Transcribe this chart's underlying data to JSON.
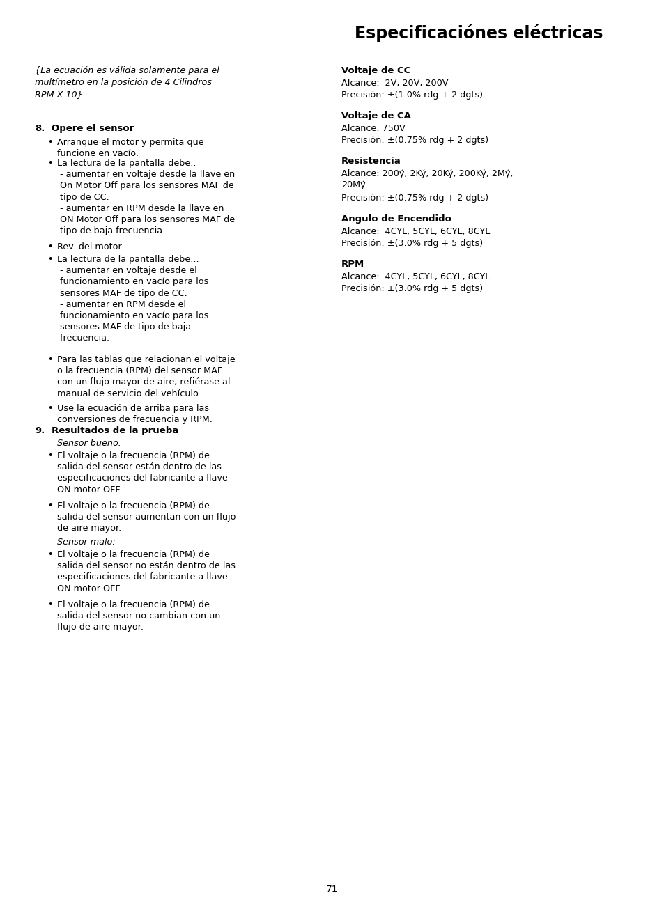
{
  "title": "Especificaciónes eléctricas",
  "bg_color": "#ffffff",
  "text_color": "#000000",
  "page_number": "71",
  "fig_w": 9.54,
  "fig_h": 13.01,
  "dpi": 100
}
